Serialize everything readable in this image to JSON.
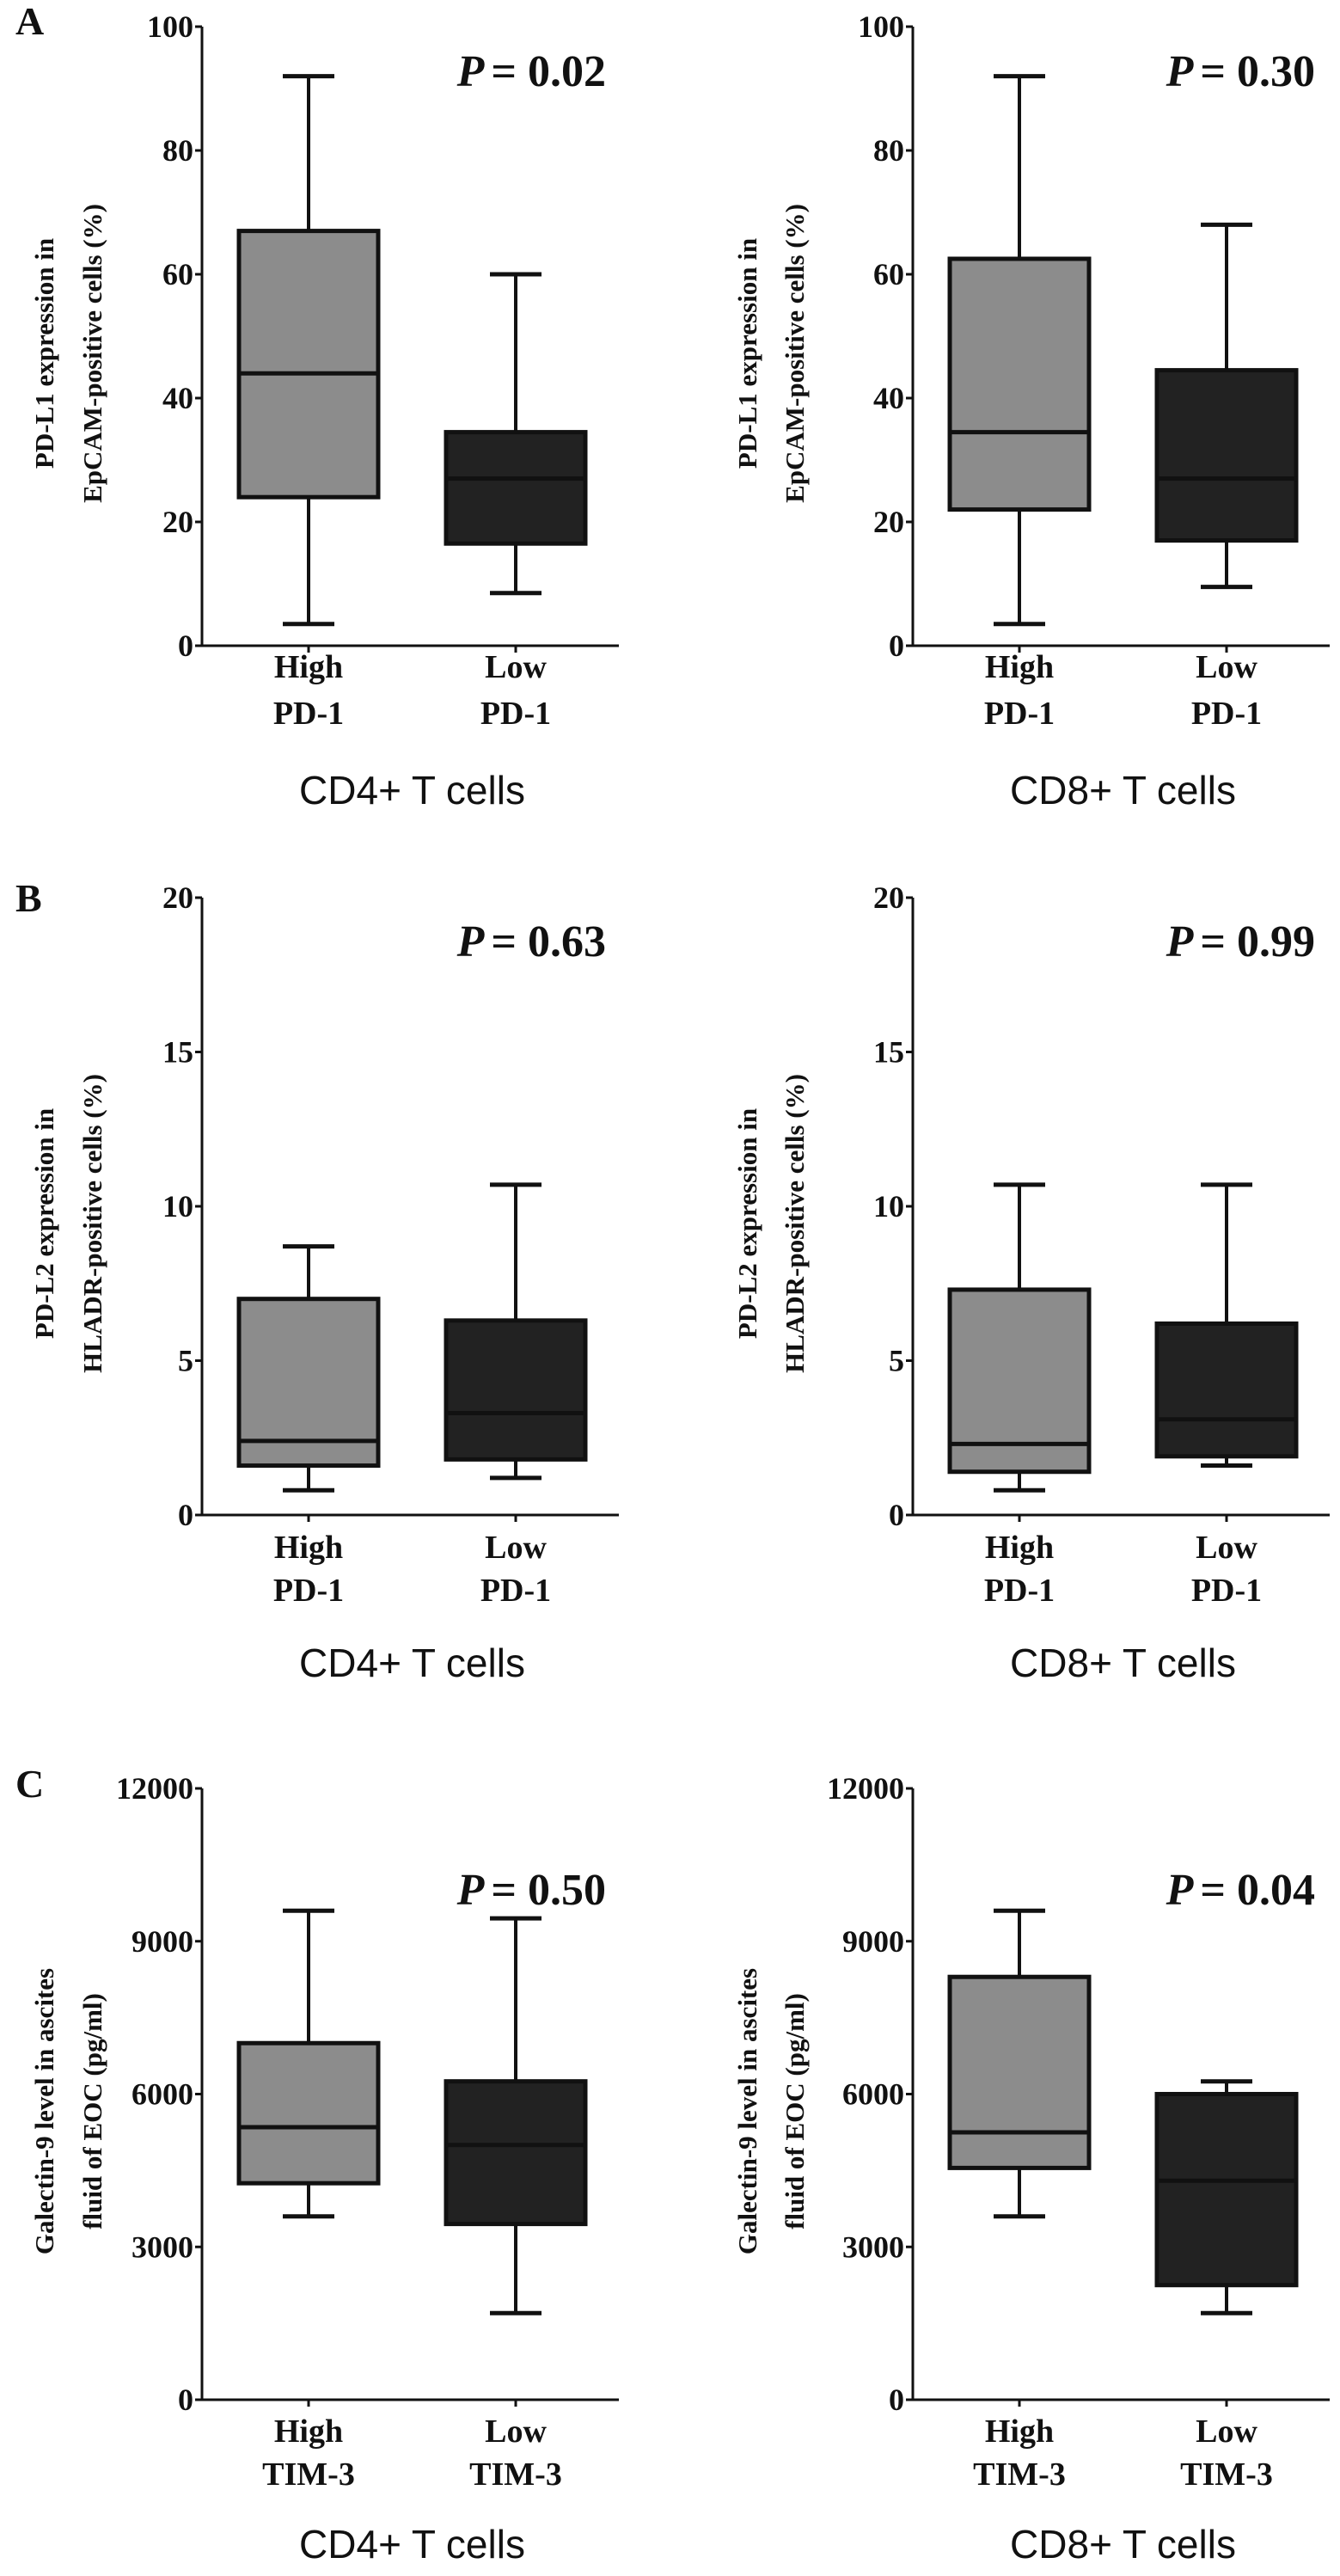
{
  "panel_letters": [
    "A",
    "B",
    "C"
  ],
  "colors": {
    "high": "#8c8c8c",
    "low": "#222222",
    "stroke": "#111111"
  },
  "chart_data": [
    {
      "type": "box",
      "panel": "A",
      "group_title": "CD4+ T cells",
      "p_label": "P",
      "p_value": "= 0.02",
      "ylabel": [
        "PD-L1 expression in",
        "EpCAM-positive cells (%)"
      ],
      "ylim": [
        0,
        100
      ],
      "yticks": [
        "0",
        "20",
        "40",
        "60",
        "80",
        "100"
      ],
      "categories": [
        [
          "High",
          "PD-1"
        ],
        [
          "Low",
          "PD-1"
        ]
      ],
      "boxes": [
        {
          "min": 3.5,
          "q1": 24,
          "median": 44,
          "q3": 67,
          "max": 92
        },
        {
          "min": 8.5,
          "q1": 16.5,
          "median": 27,
          "q3": 34.5,
          "max": 60
        }
      ]
    },
    {
      "type": "box",
      "panel": "A",
      "group_title": "CD8+ T cells",
      "p_label": "P",
      "p_value": "= 0.30",
      "ylabel": [
        "PD-L1 expression in",
        "EpCAM-positive cells (%)"
      ],
      "ylim": [
        0,
        100
      ],
      "yticks": [
        "0",
        "20",
        "40",
        "60",
        "80",
        "100"
      ],
      "categories": [
        [
          "High",
          "PD-1"
        ],
        [
          "Low",
          "PD-1"
        ]
      ],
      "boxes": [
        {
          "min": 3.5,
          "q1": 22,
          "median": 34.5,
          "q3": 62.5,
          "max": 92
        },
        {
          "min": 9.5,
          "q1": 17,
          "median": 27,
          "q3": 44.5,
          "max": 68
        }
      ]
    },
    {
      "type": "box",
      "panel": "B",
      "group_title": "CD4+ T cells",
      "p_label": "P",
      "p_value": "= 0.63",
      "ylabel": [
        "PD-L2 expression in",
        "HLADR-positive cells (%)"
      ],
      "ylim": [
        0,
        20
      ],
      "yticks": [
        "0",
        "5",
        "10",
        "15",
        "20"
      ],
      "categories": [
        [
          "High",
          "PD-1"
        ],
        [
          "Low",
          "PD-1"
        ]
      ],
      "boxes": [
        {
          "min": 0.8,
          "q1": 1.6,
          "median": 2.4,
          "q3": 7.0,
          "max": 8.7
        },
        {
          "min": 1.2,
          "q1": 1.8,
          "median": 3.3,
          "q3": 6.3,
          "max": 10.7
        }
      ]
    },
    {
      "type": "box",
      "panel": "B",
      "group_title": "CD8+ T cells",
      "p_label": "P",
      "p_value": "= 0.99",
      "ylabel": [
        "PD-L2 expression in",
        "HLADR-positive cells (%)"
      ],
      "ylim": [
        0,
        20
      ],
      "yticks": [
        "0",
        "5",
        "10",
        "15",
        "20"
      ],
      "categories": [
        [
          "High",
          "PD-1"
        ],
        [
          "Low",
          "PD-1"
        ]
      ],
      "boxes": [
        {
          "min": 0.8,
          "q1": 1.4,
          "median": 2.3,
          "q3": 7.3,
          "max": 10.7
        },
        {
          "min": 1.6,
          "q1": 1.9,
          "median": 3.1,
          "q3": 6.2,
          "max": 10.7
        }
      ]
    },
    {
      "type": "box",
      "panel": "C",
      "group_title": "CD4+ T cells",
      "p_label": "P",
      "p_value": "= 0.50",
      "ylabel": [
        "Galectin-9 level in ascites",
        "fluid of EOC (pg/ml)"
      ],
      "ylim": [
        0,
        12000
      ],
      "yticks": [
        "0",
        "3000",
        "6000",
        "9000",
        "12000"
      ],
      "categories": [
        [
          "High",
          "TIM-3"
        ],
        [
          "Low",
          "TIM-3"
        ]
      ],
      "boxes": [
        {
          "min": 3600,
          "q1": 4250,
          "median": 5350,
          "q3": 7000,
          "max": 9600
        },
        {
          "min": 1700,
          "q1": 3450,
          "median": 5000,
          "q3": 6250,
          "max": 9450
        }
      ]
    },
    {
      "type": "box",
      "panel": "C",
      "group_title": "CD8+ T cells",
      "p_label": "P",
      "p_value": "= 0.04",
      "ylabel": [
        "Galectin-9 level in ascites",
        "fluid of EOC (pg/ml)"
      ],
      "ylim": [
        0,
        12000
      ],
      "yticks": [
        "0",
        "3000",
        "6000",
        "9000",
        "12000"
      ],
      "categories": [
        [
          "High",
          "TIM-3"
        ],
        [
          "Low",
          "TIM-3"
        ]
      ],
      "boxes": [
        {
          "min": 3600,
          "q1": 4550,
          "median": 5250,
          "q3": 8300,
          "max": 9600
        },
        {
          "min": 1700,
          "q1": 2250,
          "median": 4300,
          "q3": 6000,
          "max": 6250
        }
      ]
    }
  ]
}
